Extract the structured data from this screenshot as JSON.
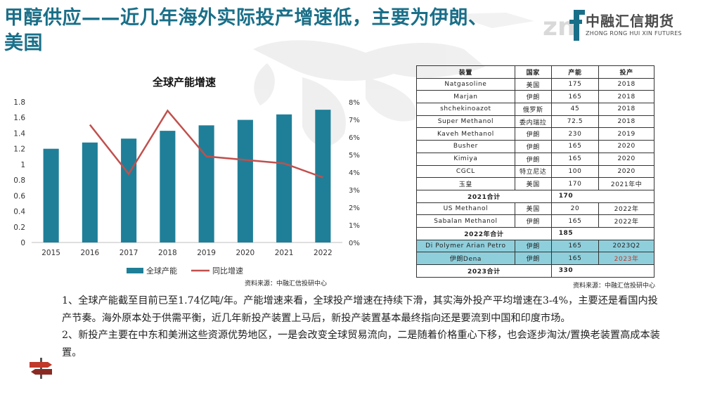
{
  "page": {
    "title": "甲醇供应——近几年海外实际投产增速低，主要为伊朗、美国"
  },
  "logo": {
    "name": "中融汇信期货",
    "subtitle": "ZHONG RONG HUI XIN FUTURES"
  },
  "chart_data": {
    "type": "bar",
    "title": "全球产能增速",
    "categories": [
      "2015",
      "2016",
      "2017",
      "2018",
      "2019",
      "2020",
      "2021",
      "2022"
    ],
    "series": [
      {
        "name": "全球产能",
        "kind": "bar",
        "axis": "left",
        "color": "#1f7f98",
        "values": [
          1.2,
          1.28,
          1.33,
          1.43,
          1.5,
          1.57,
          1.64,
          1.7
        ]
      },
      {
        "name": "同比增速",
        "kind": "line",
        "axis": "right",
        "color": "#c0504d",
        "values": [
          null,
          6.7,
          3.9,
          7.5,
          4.9,
          4.7,
          4.5,
          3.7
        ]
      }
    ],
    "y_left": {
      "ticks": [
        "0",
        "0.2",
        "0.4",
        "0.6",
        "0.8",
        "1",
        "1.2",
        "1.4",
        "1.6",
        "1.8"
      ],
      "range": [
        0,
        1.8
      ]
    },
    "y_right": {
      "ticks": [
        "0%",
        "1%",
        "2%",
        "3%",
        "4%",
        "5%",
        "6%",
        "7%",
        "8%"
      ],
      "range": [
        0,
        8
      ]
    },
    "legend_position": "bottom",
    "grid": false,
    "source": "资料来源：中融汇信投研中心"
  },
  "table": {
    "headers": [
      "装置",
      "国家",
      "产能",
      "投产"
    ],
    "rows": [
      {
        "type": "row",
        "cells": [
          "Natgasoline",
          "美国",
          "175",
          "2018"
        ]
      },
      {
        "type": "row",
        "cells": [
          "Marjan",
          "伊朗",
          "165",
          "2018"
        ]
      },
      {
        "type": "row",
        "cells": [
          "shchekinoazot",
          "俄罗斯",
          "45",
          "2018"
        ]
      },
      {
        "type": "row",
        "cells": [
          "Super Methanol",
          "委内瑞拉",
          "72.5",
          "2018"
        ]
      },
      {
        "type": "row",
        "cells": [
          "Kaveh Methanol",
          "伊朗",
          "230",
          "2019"
        ]
      },
      {
        "type": "row",
        "cells": [
          "Busher",
          "伊朗",
          "165",
          "2020"
        ]
      },
      {
        "type": "row",
        "cells": [
          "Kimiya",
          "伊朗",
          "165",
          "2020"
        ]
      },
      {
        "type": "row",
        "cells": [
          "CGCL",
          "特立尼达",
          "100",
          "2020"
        ]
      },
      {
        "type": "row",
        "cells": [
          "玉皇",
          "美国",
          "170",
          "2021年中"
        ]
      },
      {
        "type": "sum",
        "cells": [
          "2021合计",
          "170"
        ]
      },
      {
        "type": "row",
        "cells": [
          "US Methanol",
          "美国",
          "20",
          "2022年"
        ]
      },
      {
        "type": "row",
        "cells": [
          "Sabalan Methanol",
          "伊朗",
          "165",
          "2022年"
        ]
      },
      {
        "type": "sum",
        "cells": [
          "2022年合计",
          "185"
        ]
      },
      {
        "type": "hl",
        "cells": [
          "Di Polymer Arian Petro",
          "伊朗",
          "165",
          "2023Q2"
        ]
      },
      {
        "type": "hl",
        "cells": [
          "伊朗Dena",
          "伊朗",
          "165",
          "2023年"
        ],
        "red_last": true
      },
      {
        "type": "sum",
        "cells": [
          "2023合计",
          "330"
        ]
      }
    ],
    "source": "资料来源：中融汇信投研中心"
  },
  "text": {
    "p1": "1、全球产能截至目前已至1.74亿吨/年。产能增速来看，全球投产增速在持续下滑，其实海外投产平均增速在3-4%，主要还是看国内投产节奏。海外原本处于供需平衡，近几年新投产装置上马后，新投产装置基本最终指向还是要流到中国和印度市场。",
    "p2": "2、新投产主要在中东和美洲这些资源优势地区，一是会改变全球贸易流向，二是随着价格重心下移，也会逐步淘汰/置换老装置高成本装置。"
  }
}
